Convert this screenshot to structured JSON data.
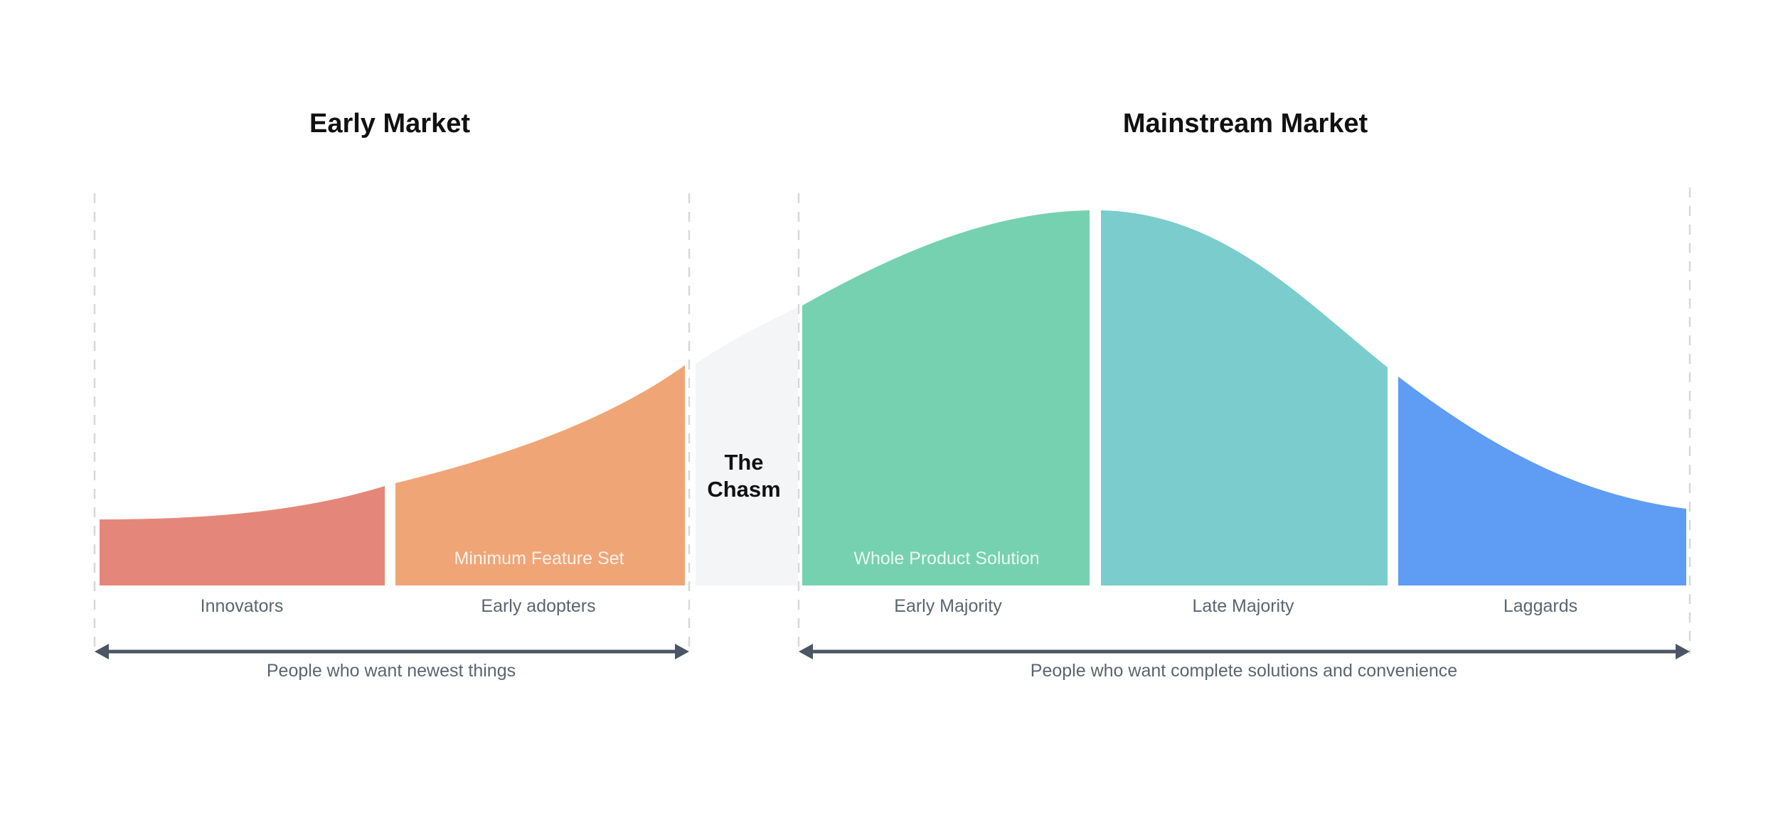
{
  "titles": {
    "early_market": "Early Market",
    "mainstream_market": "Mainstream Market"
  },
  "chasm": {
    "line1": "The",
    "line2": "Chasm"
  },
  "segments": [
    {
      "label": "Innovators",
      "color": "#E4877A"
    },
    {
      "label": "Early adopters",
      "color": "#F0A577"
    },
    {
      "label": "Early Majority",
      "color": "#76D1B0"
    },
    {
      "label": "Late Majority",
      "color": "#7ACDCC"
    },
    {
      "label": "Laggards",
      "color": "#5F9CF4"
    }
  ],
  "inner_labels": {
    "early_adopters": "Minimum Feature Set",
    "early_majority": "Whole Product Solution"
  },
  "notes": {
    "early": "People who want newest things",
    "mainstream": "People who want complete solutions and convenience"
  },
  "colors": {
    "chasm_fill": "#F4F5F6",
    "arrow": "#4b5563",
    "guide": "#d8d8d8"
  }
}
